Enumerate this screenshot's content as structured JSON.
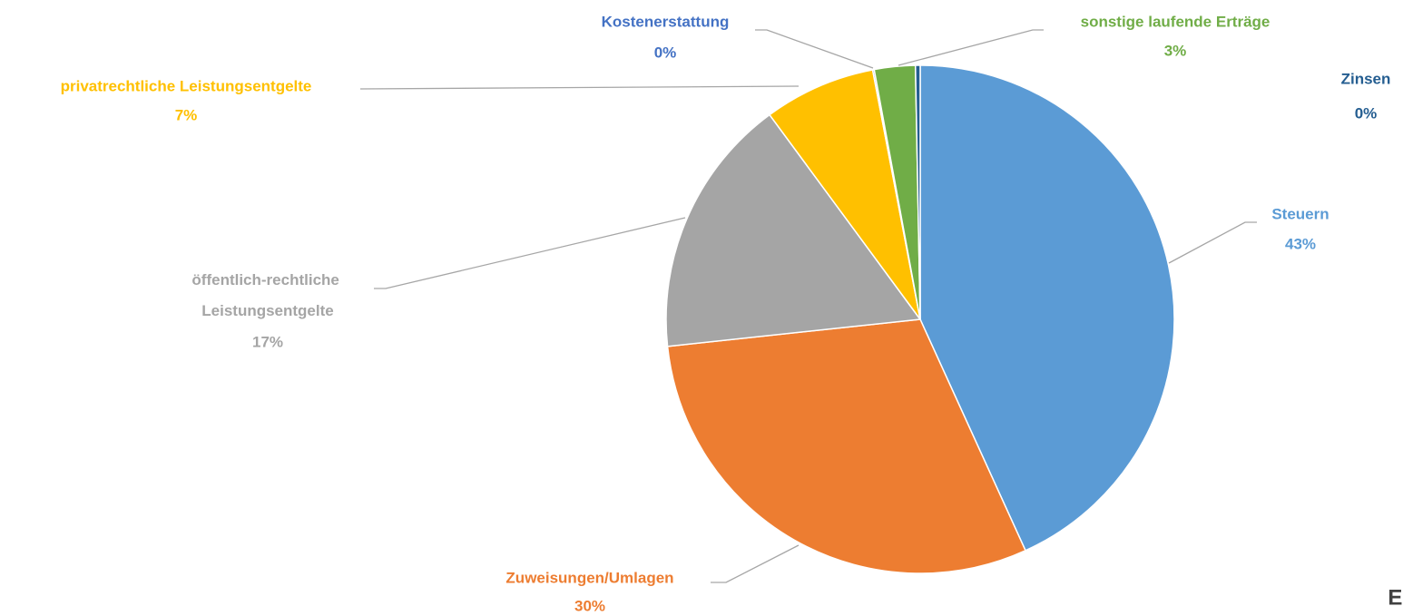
{
  "chart_data": {
    "type": "pie",
    "categories": [
      "Steuern",
      "Zuweisungen/Umlagen",
      "öffentlich-rechtliche Leistungsentgelte",
      "privatrechtliche Leistungsentgelte",
      "Kostenerstattung",
      "sonstige laufende Erträge",
      "Zinsen"
    ],
    "values": [
      43.2,
      30.1,
      16.6,
      7.1,
      0.1,
      2.6,
      0.3
    ],
    "value_labels": [
      "43%",
      "30%",
      "17%",
      "7%",
      "0%",
      "3%",
      "0%"
    ],
    "colors": [
      "#5b9bd5",
      "#ed7d31",
      "#a5a5a5",
      "#ffc000",
      "#4472c4",
      "#70ad47",
      "#255e91"
    ],
    "corner_text": "ER"
  }
}
